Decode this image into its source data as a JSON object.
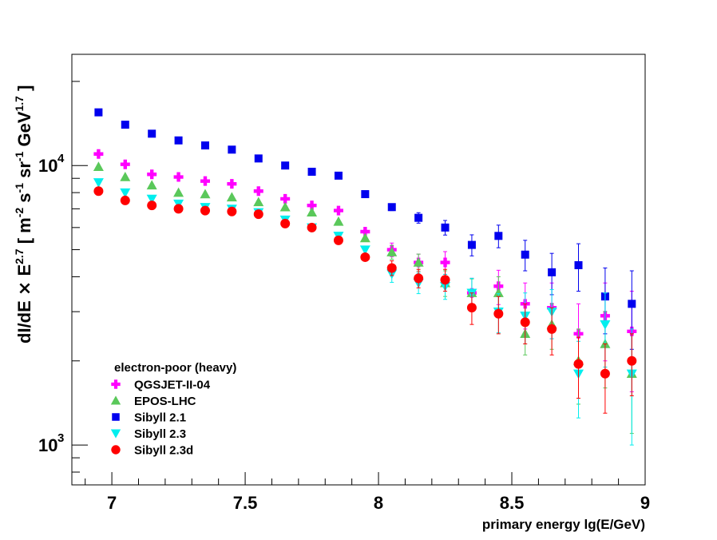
{
  "chart_data": {
    "type": "scatter",
    "title": "",
    "xlabel": "primary energy lg(E/GeV)",
    "ylabel_parts": [
      "dI/dE ",
      "×",
      " E",
      "2.7",
      " [ m",
      "-2",
      " s",
      "-1",
      " sr",
      "-1",
      " GeV",
      "1.7",
      " ]"
    ],
    "xlim": [
      6.85,
      9.0
    ],
    "ylim": [
      720,
      25000
    ],
    "yscale": "log",
    "x_ticks": [
      7,
      7.5,
      8,
      8.5,
      9
    ],
    "x_tick_labels": [
      "7",
      "7.5",
      "8",
      "8.5",
      "9"
    ],
    "y_tick_labels": [
      {
        "base": "10",
        "exp": "3",
        "value": 1000
      },
      {
        "base": "10",
        "exp": "4",
        "value": 10000
      }
    ],
    "legend_title": "electron-poor (heavy)",
    "legend_position": "bottom-left",
    "x": [
      6.95,
      7.05,
      7.15,
      7.25,
      7.35,
      7.45,
      7.55,
      7.65,
      7.75,
      7.85,
      7.95,
      8.05,
      8.15,
      8.25,
      8.35,
      8.45,
      8.55,
      8.65,
      8.75,
      8.85,
      8.95
    ],
    "series": [
      {
        "name": "QGSJET-II-04",
        "marker": "plus",
        "color": "#ff00ff",
        "values": [
          11000,
          10100,
          9300,
          9100,
          8800,
          8600,
          8100,
          7600,
          7200,
          6900,
          5800,
          5000,
          4500,
          4500,
          3500,
          3700,
          3200,
          3100,
          2500,
          2900,
          2550
        ],
        "err_low": [
          0,
          0,
          0,
          0,
          0,
          0,
          0,
          0,
          0,
          0,
          0,
          280,
          320,
          420,
          450,
          520,
          600,
          700,
          700,
          900,
          1000
        ],
        "err_high": [
          0,
          0,
          0,
          0,
          0,
          0,
          0,
          0,
          0,
          0,
          0,
          280,
          320,
          420,
          450,
          520,
          600,
          700,
          700,
          900,
          1000
        ]
      },
      {
        "name": "EPOS-LHC",
        "marker": "triangle-up",
        "color": "#5ac85a",
        "values": [
          9900,
          9100,
          8500,
          8000,
          7900,
          7700,
          7400,
          7100,
          6800,
          6300,
          5500,
          4900,
          4500,
          3800,
          3500,
          3500,
          2500,
          2700,
          2000,
          2300,
          1800
        ],
        "err_low": [
          0,
          0,
          0,
          0,
          0,
          0,
          0,
          0,
          0,
          0,
          0,
          280,
          320,
          400,
          430,
          500,
          400,
          500,
          600,
          700,
          700
        ],
        "err_high": [
          0,
          0,
          0,
          0,
          0,
          0,
          0,
          0,
          0,
          0,
          0,
          280,
          320,
          400,
          430,
          500,
          400,
          500,
          600,
          700,
          700
        ]
      },
      {
        "name": "Sibyll 2.1",
        "marker": "square",
        "color": "#0000ee",
        "values": [
          15500,
          14000,
          13000,
          12300,
          11800,
          11400,
          10600,
          10000,
          9500,
          9200,
          7900,
          7100,
          6500,
          6000,
          5200,
          5600,
          4800,
          4150,
          4400,
          3400,
          3200
        ],
        "err_low": [
          0,
          0,
          0,
          0,
          0,
          0,
          0,
          0,
          0,
          0,
          0,
          200,
          280,
          360,
          450,
          520,
          600,
          700,
          850,
          900,
          1000
        ],
        "err_high": [
          0,
          0,
          0,
          0,
          0,
          0,
          0,
          0,
          0,
          0,
          0,
          200,
          280,
          360,
          450,
          520,
          600,
          700,
          850,
          900,
          1000
        ]
      },
      {
        "name": "Sibyll 2.3",
        "marker": "triangle-down",
        "color": "#00eeee",
        "values": [
          8700,
          8000,
          7600,
          7300,
          7100,
          7000,
          6800,
          6400,
          6000,
          5600,
          5000,
          4100,
          3800,
          3700,
          3500,
          3000,
          2900,
          3000,
          1800,
          2700,
          1800
        ],
        "err_low": [
          0,
          0,
          0,
          0,
          0,
          0,
          0,
          0,
          0,
          0,
          0,
          280,
          320,
          380,
          450,
          480,
          600,
          600,
          550,
          800,
          800
        ],
        "err_high": [
          0,
          0,
          0,
          0,
          0,
          0,
          0,
          0,
          0,
          0,
          0,
          280,
          320,
          380,
          450,
          480,
          600,
          600,
          550,
          800,
          800
        ]
      },
      {
        "name": "Sibyll 2.3d",
        "marker": "circle",
        "color": "#ff0000",
        "values": [
          8100,
          7500,
          7200,
          7000,
          6900,
          6850,
          6700,
          6200,
          6000,
          5400,
          4700,
          4300,
          3950,
          3900,
          3100,
          2950,
          2750,
          2600,
          1950,
          1800,
          2000
        ],
        "err_low": [
          0,
          0,
          0,
          0,
          0,
          0,
          0,
          0,
          0,
          0,
          0,
          260,
          300,
          350,
          400,
          450,
          450,
          500,
          480,
          500,
          500
        ],
        "err_high": [
          0,
          0,
          0,
          0,
          0,
          0,
          0,
          0,
          0,
          0,
          0,
          260,
          300,
          350,
          400,
          450,
          450,
          500,
          480,
          500,
          500
        ]
      }
    ]
  }
}
